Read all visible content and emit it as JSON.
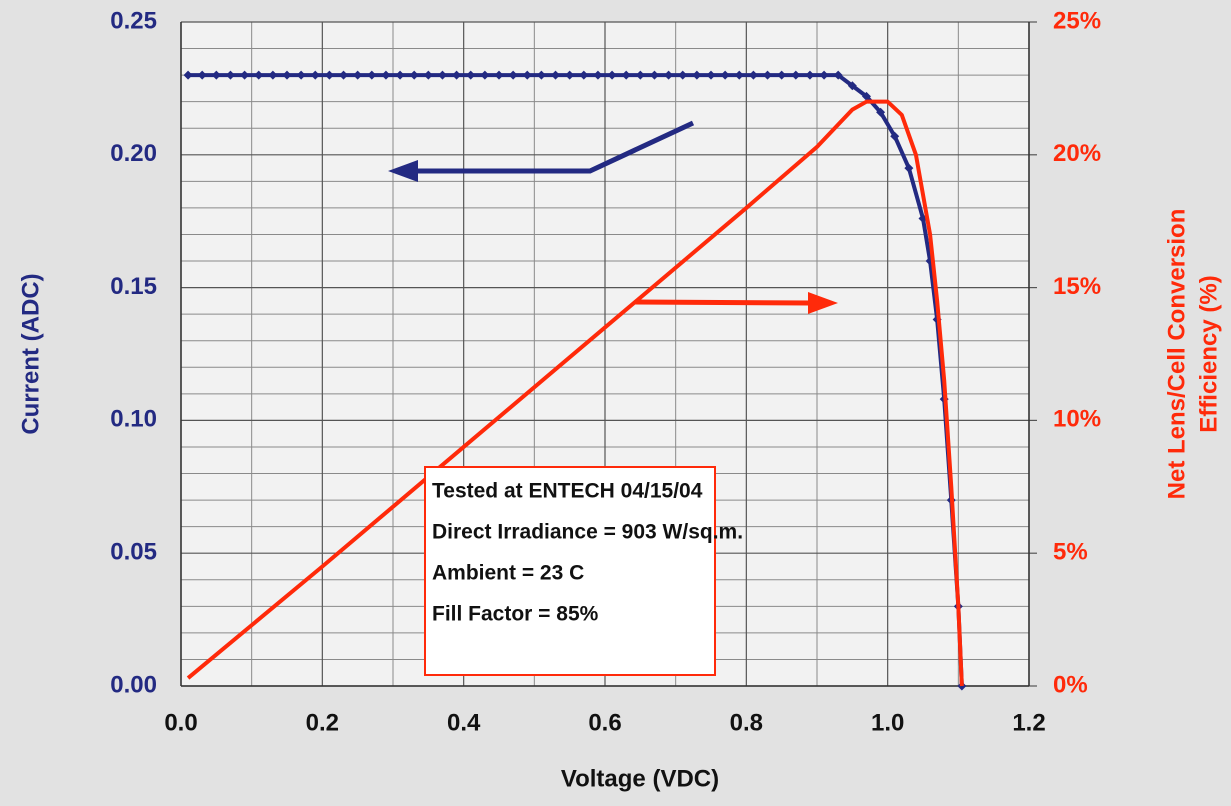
{
  "chart_data": {
    "type": "line",
    "xlabel": "Voltage (VDC)",
    "ylabel": "Current (ADC)",
    "y2label": [
      "Net Lens/Cell Conversion",
      "Efficiency (%)"
    ],
    "annotation": [
      "Tested at ENTECH 04/15/04",
      "Direct Irradiance = 903 W/sq.m.",
      "Ambient = 23 C",
      "Fill Factor = 85%"
    ],
    "xlim": [
      0,
      1.2
    ],
    "xticks": [
      {
        "value": 0,
        "label": "0.0"
      },
      0.2,
      0.4,
      0.6,
      0.8,
      {
        "value": 1,
        "label": "1.0"
      },
      1.2
    ],
    "xminorticks": [
      0.1,
      0.3,
      0.5,
      0.7,
      0.9,
      1.1
    ],
    "ylim": [
      0,
      0.25
    ],
    "yticks": [
      {
        "value": 0,
        "label": "0.00"
      },
      0.05,
      {
        "value": 0.1,
        "label": "0.10"
      },
      0.15,
      {
        "value": 0.2,
        "label": "0.20"
      },
      0.25
    ],
    "yminorticks": [
      0.01,
      0.02,
      0.03,
      0.04,
      0.06,
      0.07,
      0.08,
      0.09,
      0.11,
      0.12,
      0.13,
      0.14,
      0.16,
      0.17,
      0.18,
      0.19,
      0.21,
      0.22,
      0.23,
      0.24
    ],
    "y2lim": [
      0,
      25
    ],
    "y2ticks": [
      {
        "value": 0,
        "label": "0%"
      },
      {
        "value": 5,
        "label": "5%"
      },
      {
        "value": 10,
        "label": "10%"
      },
      {
        "value": 15,
        "label": "15%"
      },
      {
        "value": 20,
        "label": "20%"
      },
      {
        "value": 25,
        "label": "25%"
      }
    ],
    "grid": true,
    "series": [
      {
        "color": "#232a82",
        "markers": true,
        "x": [
          0.01,
          0.03,
          0.05,
          0.07,
          0.09,
          0.11,
          0.13,
          0.15,
          0.17,
          0.19,
          0.21,
          0.23,
          0.25,
          0.27,
          0.29,
          0.31,
          0.33,
          0.35,
          0.37,
          0.39,
          0.41,
          0.43,
          0.45,
          0.47,
          0.49,
          0.51,
          0.53,
          0.55,
          0.57,
          0.59,
          0.61,
          0.63,
          0.65,
          0.67,
          0.69,
          0.71,
          0.73,
          0.75,
          0.77,
          0.79,
          0.81,
          0.83,
          0.85,
          0.87,
          0.89,
          0.91,
          0.93,
          0.95,
          0.97,
          0.99,
          1.01,
          1.03,
          1.05,
          1.06,
          1.07,
          1.08,
          1.09,
          1.1,
          1.105
        ],
        "values": [
          0.23,
          0.23,
          0.23,
          0.23,
          0.23,
          0.23,
          0.23,
          0.23,
          0.23,
          0.23,
          0.23,
          0.23,
          0.23,
          0.23,
          0.23,
          0.23,
          0.23,
          0.23,
          0.23,
          0.23,
          0.23,
          0.23,
          0.23,
          0.23,
          0.23,
          0.23,
          0.23,
          0.23,
          0.23,
          0.23,
          0.23,
          0.23,
          0.23,
          0.23,
          0.23,
          0.23,
          0.23,
          0.23,
          0.23,
          0.23,
          0.23,
          0.23,
          0.23,
          0.23,
          0.23,
          0.23,
          0.23,
          0.226,
          0.222,
          0.216,
          0.207,
          0.195,
          0.176,
          0.16,
          0.138,
          0.108,
          0.07,
          0.03,
          0
        ]
      },
      {
        "color": "#ff2a0a",
        "axis": "y2",
        "markers": false,
        "x": [
          0.01,
          0.2,
          0.4,
          0.6,
          0.8,
          0.9,
          0.95,
          0.97,
          1.0,
          1.02,
          1.04,
          1.06,
          1.07,
          1.08,
          1.09,
          1.1,
          1.105
        ],
        "values": [
          0.3,
          4.5,
          9.0,
          13.5,
          18.0,
          20.3,
          21.7,
          22.0,
          22.0,
          21.5,
          20.0,
          17.0,
          14.5,
          11.5,
          7.5,
          3.0,
          0
        ]
      }
    ]
  }
}
